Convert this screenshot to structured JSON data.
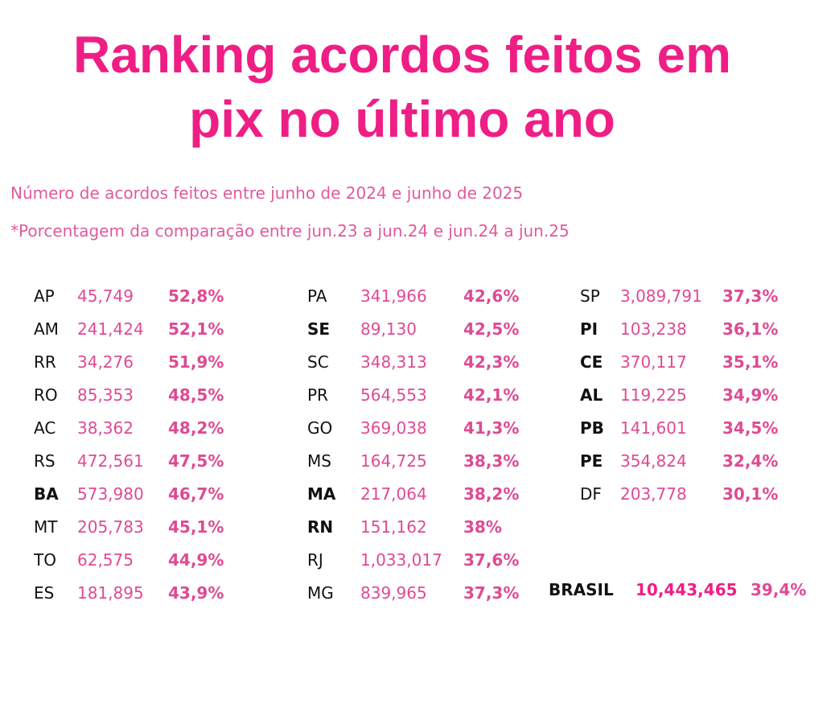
{
  "header": {
    "title_line1": "Ranking acordos feitos em",
    "title_line2": "pix no último ano",
    "subtitle1": "Número de acordos feitos entre junho de 2024 e junho de 2025",
    "subtitle2": "*Porcentagem da comparação entre jun.23 a jun.24 e jun.24 a jun.25"
  },
  "columns": [
    {
      "rows": [
        {
          "uf": "AP",
          "value": "45,749",
          "pct": "52,8%",
          "bold": false
        },
        {
          "uf": "AM",
          "value": "241,424",
          "pct": "52,1%",
          "bold": false
        },
        {
          "uf": "RR",
          "value": "34,276",
          "pct": "51,9%",
          "bold": false
        },
        {
          "uf": "RO",
          "value": "85,353",
          "pct": "48,5%",
          "bold": false
        },
        {
          "uf": "AC",
          "value": "38,362",
          "pct": "48,2%",
          "bold": false
        },
        {
          "uf": "RS",
          "value": "472,561",
          "pct": "47,5%",
          "bold": false
        },
        {
          "uf": "BA",
          "value": "573,980",
          "pct": "46,7%",
          "bold": true
        },
        {
          "uf": "MT",
          "value": "205,783",
          "pct": "45,1%",
          "bold": false
        },
        {
          "uf": "TO",
          "value": "62,575",
          "pct": "44,9%",
          "bold": false
        },
        {
          "uf": "ES",
          "value": "181,895",
          "pct": "43,9%",
          "bold": false
        }
      ]
    },
    {
      "rows": [
        {
          "uf": "PA",
          "value": "341,966",
          "pct": "42,6%",
          "bold": false
        },
        {
          "uf": "SE",
          "value": "89,130",
          "pct": "42,5%",
          "bold": true
        },
        {
          "uf": "SC",
          "value": "348,313",
          "pct": "42,3%",
          "bold": false
        },
        {
          "uf": "PR",
          "value": "564,553",
          "pct": "42,1%",
          "bold": false
        },
        {
          "uf": "GO",
          "value": "369,038",
          "pct": "41,3%",
          "bold": false
        },
        {
          "uf": "MS",
          "value": "164,725",
          "pct": "38,3%",
          "bold": false
        },
        {
          "uf": "MA",
          "value": "217,064",
          "pct": "38,2%",
          "bold": true
        },
        {
          "uf": "RN",
          "value": "151,162",
          "pct": "38%",
          "bold": true
        },
        {
          "uf": "RJ",
          "value": "1,033,017",
          "pct": "37,6%",
          "bold": false
        },
        {
          "uf": "MG",
          "value": "839,965",
          "pct": "37,3%",
          "bold": false
        }
      ]
    },
    {
      "rows": [
        {
          "uf": "SP",
          "value": "3,089,791",
          "pct": "37,3%",
          "bold": false
        },
        {
          "uf": "PI",
          "value": "103,238",
          "pct": "36,1%",
          "bold": true
        },
        {
          "uf": "CE",
          "value": "370,117",
          "pct": "35,1%",
          "bold": true
        },
        {
          "uf": "AL",
          "value": "119,225",
          "pct": "34,9%",
          "bold": true
        },
        {
          "uf": "PB",
          "value": "141,601",
          "pct": "34,5%",
          "bold": true
        },
        {
          "uf": "PE",
          "value": "354,824",
          "pct": "32,4%",
          "bold": true
        },
        {
          "uf": "DF",
          "value": "203,778",
          "pct": "30,1%",
          "bold": false
        }
      ]
    }
  ],
  "total": {
    "label": "BRASIL",
    "value": "10,443,465",
    "pct": "39,4%"
  },
  "colors": {
    "title": "#ef1e85",
    "subtitle": "#e05a9c",
    "value": "#df4a93",
    "label": "#111111"
  }
}
